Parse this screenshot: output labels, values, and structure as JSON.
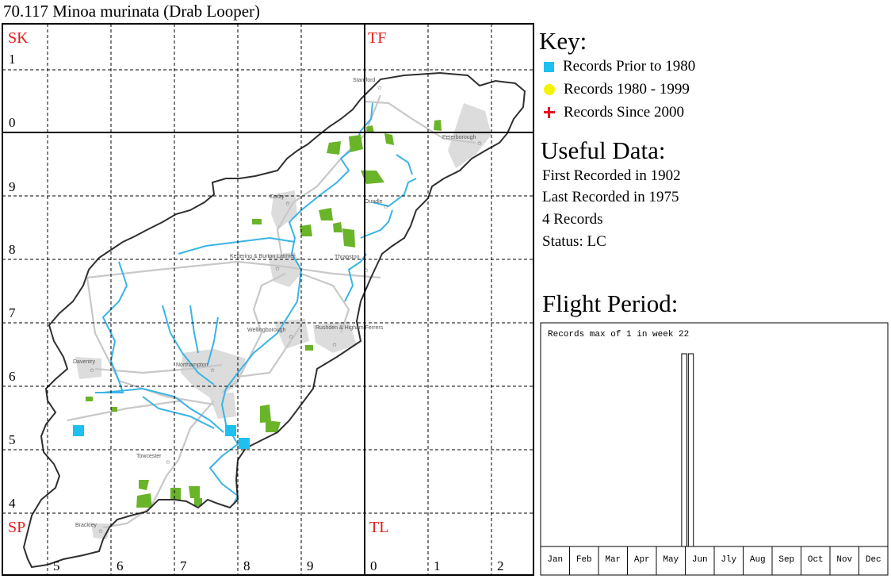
{
  "title": "70.117 Minoa murinata (Drab Looper)",
  "map": {
    "square_labels": [
      "SK",
      "TF",
      "SP",
      "TL"
    ],
    "row_labels": [
      "1",
      "0",
      "9",
      "8",
      "7",
      "6",
      "5",
      "4"
    ],
    "col_labels": [
      "5",
      "6",
      "7",
      "8",
      "9",
      "0",
      "1",
      "2"
    ],
    "town_labels": [
      "Stamford",
      "Peterborough",
      "Corby",
      "Oundle",
      "Kettering & Burton Latimer",
      "Thrapston",
      "Wellingborough",
      "Rushden & Higham Ferrers",
      "Daventry",
      "Northampton",
      "Towcester",
      "Brackley"
    ],
    "colors": {
      "square_label": "#e0201c",
      "record_pre_1980": "#1ec0f0",
      "river": "#3ab4e6",
      "woodland": "#6ab42a",
      "urban": "#d6d6d6",
      "road": "#c8c8c8"
    }
  },
  "key": {
    "title": "Key:",
    "items": [
      {
        "label": "Records Prior to 1980",
        "symbol": "blue-square"
      },
      {
        "label": "Records 1980 - 1999",
        "symbol": "yellow-circle"
      },
      {
        "label": "Records Since 2000",
        "symbol": "red-cross"
      }
    ]
  },
  "useful_data": {
    "title": "Useful Data:",
    "lines": [
      "First Recorded in 1902",
      "Last Recorded in 1975",
      "4 Records",
      "Status: LC"
    ]
  },
  "flight_period": {
    "title": "Flight Period:"
  },
  "chart_data": {
    "type": "bar",
    "title": "Records max of 1 in week 22",
    "x_unit": "week",
    "month_labels": [
      "Jan",
      "Feb",
      "Mar",
      "Apr",
      "May",
      "Jun",
      "Jly",
      "Aug",
      "Sep",
      "Oct",
      "Nov",
      "Dec"
    ],
    "x_range": [
      1,
      52
    ],
    "ylim": [
      0,
      1
    ],
    "bars": [
      {
        "week": 22,
        "value": 1
      },
      {
        "week": 23,
        "value": 1
      }
    ],
    "grid": false
  }
}
